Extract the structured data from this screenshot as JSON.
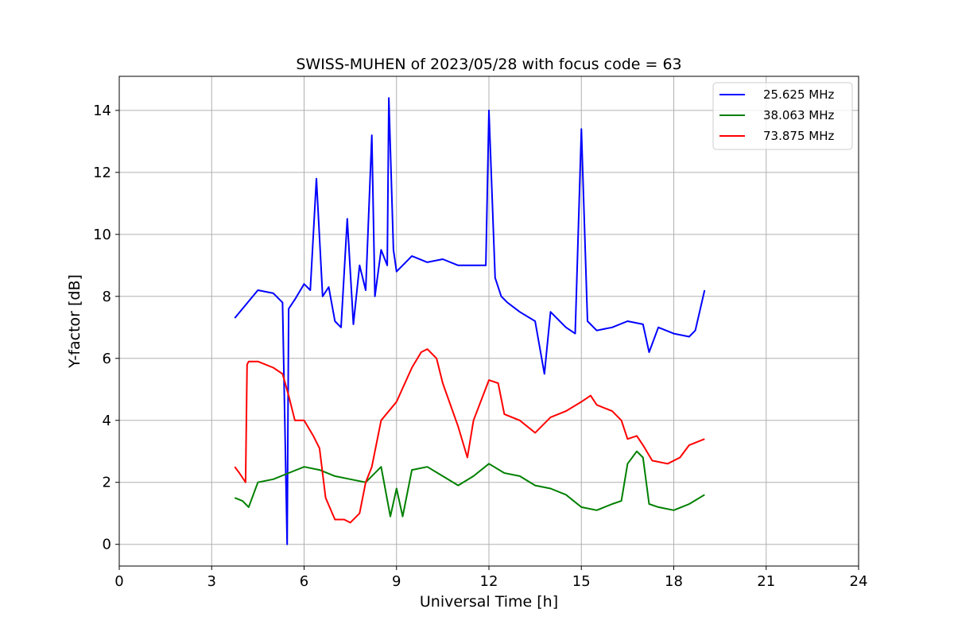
{
  "chart_data": {
    "type": "line",
    "title": "SWISS-MUHEN of 2023/05/28 with focus code = 63",
    "xlabel": "Universal Time [h]",
    "ylabel": "Y-factor [dB]",
    "xlim": [
      0,
      24
    ],
    "ylim": [
      -0.7,
      15.1
    ],
    "xticks": [
      "0",
      "3",
      "6",
      "9",
      "12",
      "15",
      "18",
      "21",
      "24"
    ],
    "yticks": [
      "0",
      "2",
      "4",
      "6",
      "8",
      "10",
      "12",
      "14"
    ],
    "grid": true,
    "legend": "top-right",
    "series": [
      {
        "name": "25.625 MHz",
        "color": "#0000ff",
        "x": [
          3.75,
          4.0,
          4.5,
          5.0,
          5.3,
          5.45,
          5.5,
          5.7,
          6.0,
          6.2,
          6.4,
          6.6,
          6.8,
          7.0,
          7.2,
          7.4,
          7.6,
          7.8,
          8.0,
          8.2,
          8.3,
          8.5,
          8.7,
          8.75,
          8.9,
          9.0,
          9.2,
          9.5,
          10.0,
          10.5,
          11.0,
          11.5,
          11.9,
          12.0,
          12.2,
          12.4,
          12.6,
          13.0,
          13.5,
          13.8,
          14.0,
          14.5,
          14.8,
          15.0,
          15.2,
          15.5,
          16.0,
          16.5,
          17.0,
          17.2,
          17.5,
          18.0,
          18.5,
          18.7,
          19.0
        ],
        "y": [
          7.3,
          7.6,
          8.2,
          8.1,
          7.8,
          0.0,
          7.6,
          7.9,
          8.4,
          8.2,
          11.8,
          8.0,
          8.3,
          7.2,
          7.0,
          10.5,
          7.1,
          9.0,
          8.2,
          13.2,
          8.0,
          9.5,
          9.0,
          14.4,
          9.5,
          8.8,
          9.0,
          9.3,
          9.1,
          9.2,
          9.0,
          9.0,
          9.0,
          14.0,
          8.6,
          8.0,
          7.8,
          7.5,
          7.2,
          5.5,
          7.5,
          7.0,
          6.8,
          13.4,
          7.2,
          6.9,
          7.0,
          7.2,
          7.1,
          6.2,
          7.0,
          6.8,
          6.7,
          6.9,
          8.2
        ]
      },
      {
        "name": "38.063 MHz",
        "color": "#008000",
        "x": [
          3.75,
          4.0,
          4.2,
          4.5,
          5.0,
          5.5,
          6.0,
          6.5,
          7.0,
          7.5,
          8.0,
          8.5,
          8.8,
          9.0,
          9.2,
          9.5,
          10.0,
          10.5,
          11.0,
          11.5,
          12.0,
          12.5,
          13.0,
          13.5,
          14.0,
          14.5,
          15.0,
          15.5,
          16.0,
          16.3,
          16.5,
          16.8,
          17.0,
          17.2,
          17.5,
          18.0,
          18.5,
          19.0
        ],
        "y": [
          1.5,
          1.4,
          1.2,
          2.0,
          2.1,
          2.3,
          2.5,
          2.4,
          2.2,
          2.1,
          2.0,
          2.5,
          0.9,
          1.8,
          0.9,
          2.4,
          2.5,
          2.2,
          1.9,
          2.2,
          2.6,
          2.3,
          2.2,
          1.9,
          1.8,
          1.6,
          1.2,
          1.1,
          1.3,
          1.4,
          2.6,
          3.0,
          2.8,
          1.3,
          1.2,
          1.1,
          1.3,
          1.6
        ]
      },
      {
        "name": "73.875 MHz",
        "color": "#ff0000",
        "x": [
          3.75,
          3.9,
          4.1,
          4.15,
          4.2,
          4.5,
          5.0,
          5.3,
          5.5,
          5.7,
          6.0,
          6.3,
          6.5,
          6.7,
          7.0,
          7.3,
          7.5,
          7.8,
          8.0,
          8.2,
          8.5,
          9.0,
          9.5,
          9.8,
          10.0,
          10.3,
          10.5,
          11.0,
          11.3,
          11.5,
          12.0,
          12.3,
          12.5,
          13.0,
          13.5,
          14.0,
          14.5,
          15.0,
          15.3,
          15.5,
          16.0,
          16.3,
          16.5,
          16.8,
          17.0,
          17.3,
          17.8,
          18.2,
          18.5,
          19.0
        ],
        "y": [
          2.5,
          2.3,
          2.0,
          5.8,
          5.9,
          5.9,
          5.7,
          5.5,
          4.8,
          4.0,
          4.0,
          3.5,
          3.1,
          1.5,
          0.8,
          0.8,
          0.7,
          1.0,
          2.0,
          2.5,
          4.0,
          4.6,
          5.7,
          6.2,
          6.3,
          6.0,
          5.2,
          3.8,
          2.8,
          4.0,
          5.3,
          5.2,
          4.2,
          4.0,
          3.6,
          4.1,
          4.3,
          4.6,
          4.8,
          4.5,
          4.3,
          4.0,
          3.4,
          3.5,
          3.2,
          2.7,
          2.6,
          2.8,
          3.2,
          3.4
        ]
      }
    ]
  }
}
